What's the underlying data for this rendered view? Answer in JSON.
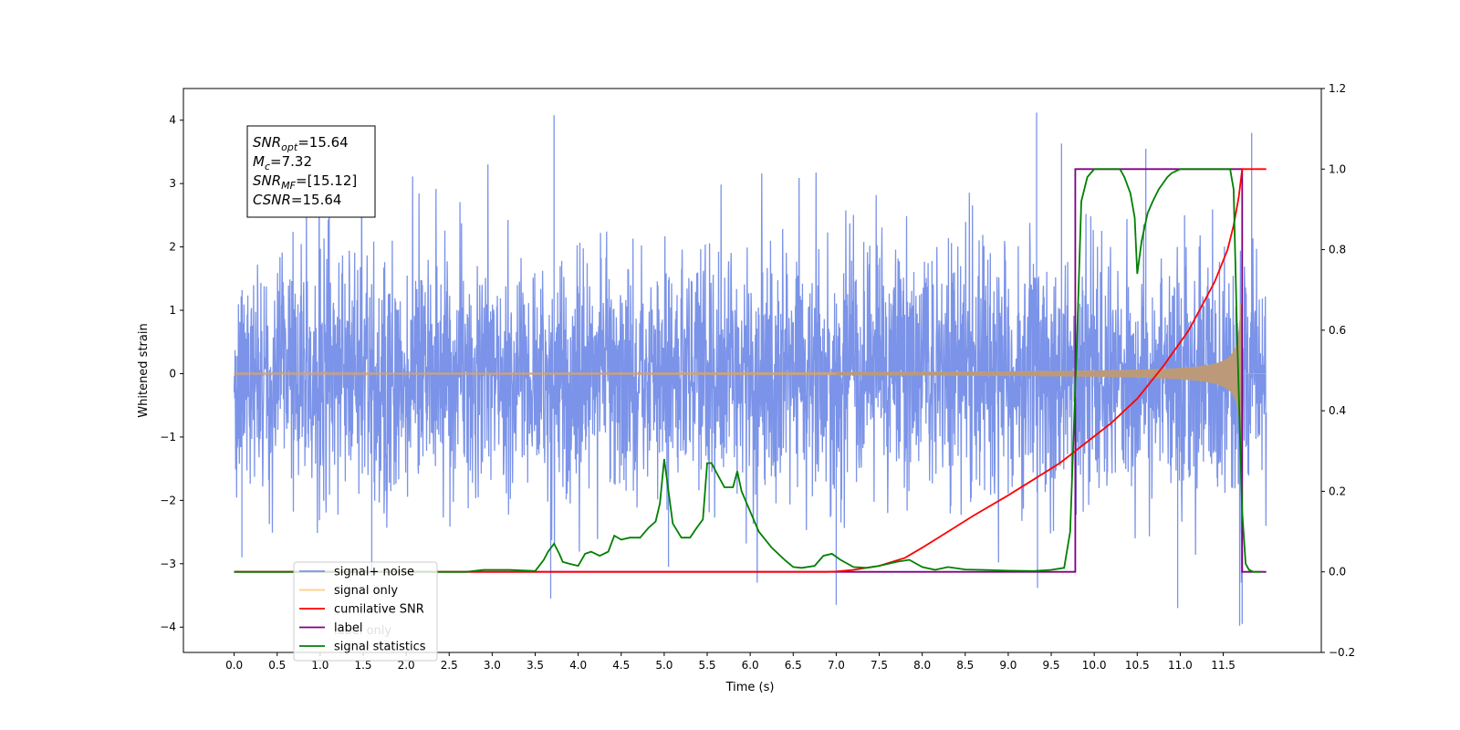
{
  "chart_data": {
    "type": "line",
    "xlabel": "Time (s)",
    "ylabel": "Whitened strain",
    "x_ticks": [
      0.0,
      0.5,
      1.0,
      1.5,
      2.0,
      2.5,
      3.0,
      3.5,
      4.0,
      4.5,
      5.0,
      5.5,
      6.0,
      6.5,
      7.0,
      7.5,
      8.0,
      8.5,
      9.0,
      9.5,
      10.0,
      10.5,
      11.0,
      11.5
    ],
    "x_tick_labels": [
      "0.0",
      "0.5",
      "1.0",
      "1.5",
      "2.0",
      "2.5",
      "3.0",
      "3.5",
      "4.0",
      "4.5",
      "5.0",
      "5.5",
      "6.0",
      "6.5",
      "7.0",
      "7.5",
      "8.0",
      "8.5",
      "9.0",
      "9.5",
      "10.0",
      "10.5",
      "11.0",
      "11.5"
    ],
    "xlim": [
      -0.59,
      12.64
    ],
    "ylim_left": [
      -4.4,
      4.5
    ],
    "y_ticks_left": [
      -4,
      -3,
      -2,
      -1,
      0,
      1,
      2,
      3,
      4
    ],
    "y_tick_labels_left": [
      "−4",
      "−3",
      "−2",
      "−1",
      "0",
      "1",
      "2",
      "3",
      "4"
    ],
    "ylim_right": [
      -0.2,
      1.2
    ],
    "y_ticks_right": [
      -0.2,
      0.0,
      0.2,
      0.4,
      0.6,
      0.8,
      1.0,
      1.2
    ],
    "y_tick_labels_right": [
      "−0.2",
      "0.0",
      "0.2",
      "0.4",
      "0.6",
      "0.8",
      "1.0",
      "1.2"
    ],
    "annotation": {
      "lines": [
        {
          "name": "SNR",
          "sub": "opt",
          "value": "=15.64"
        },
        {
          "name": "M",
          "sub": "c",
          "value": "=7.32"
        },
        {
          "name": "SNR",
          "sub": "MF",
          "value": "=[15.12]"
        },
        {
          "name": "CSNR",
          "sub": "",
          "value": "=15.64"
        }
      ]
    },
    "legend": {
      "placement": "lower-left",
      "entries": [
        {
          "label": "signal+ noise",
          "color": "#7b93e8"
        },
        {
          "label": "signal only",
          "color": "#ffcc80"
        },
        {
          "label": "cumilative SNR",
          "color": "#ff0000"
        },
        {
          "label": "label",
          "color": "#800080"
        },
        {
          "label": "signal statistics",
          "color": "#008000"
        }
      ]
    },
    "ghost_text": "label only",
    "series": [
      {
        "name": "signal+ noise",
        "axis": "left",
        "color": "#7b93e8",
        "kind": "noise",
        "x_start": 0.0,
        "x_end": 12.0,
        "typical_std": 0.95,
        "peaks": [
          [
            3.72,
            4.08
          ],
          [
            9.33,
            4.12
          ],
          [
            11.83,
            3.8
          ],
          [
            9.62,
            3.63
          ],
          [
            10.6,
            3.55
          ],
          [
            3.68,
            -3.55
          ],
          [
            7.0,
            -3.65
          ],
          [
            10.97,
            -3.7
          ],
          [
            9.34,
            -3.38
          ],
          [
            11.69,
            -3.98
          ],
          [
            11.72,
            -3.95
          ],
          [
            0.09,
            -2.9
          ],
          [
            1.6,
            -3.2
          ],
          [
            5.05,
            -3.05
          ]
        ]
      },
      {
        "name": "signal only",
        "axis": "left",
        "color": "#ffcc80",
        "kind": "chirp",
        "x_start": 0.0,
        "x_end": 12.0,
        "merger_time": 11.72,
        "peak_amplitude": 1.1,
        "post_merger_amplitude": 0.0
      },
      {
        "name": "cumilative SNR",
        "axis": "right",
        "color": "#ff0000",
        "x": [
          0.0,
          6.9,
          7.0,
          7.2,
          7.5,
          7.8,
          8.0,
          8.3,
          8.6,
          9.0,
          9.3,
          9.6,
          9.9,
          10.2,
          10.5,
          10.8,
          11.1,
          11.4,
          11.55,
          11.62,
          11.68,
          11.72,
          12.0
        ],
        "y": [
          0.0,
          0.0,
          0.001,
          0.005,
          0.015,
          0.035,
          0.06,
          0.1,
          0.14,
          0.19,
          0.23,
          0.27,
          0.32,
          0.37,
          0.43,
          0.51,
          0.6,
          0.72,
          0.8,
          0.86,
          0.93,
          1.0,
          1.0
        ]
      },
      {
        "name": "label",
        "axis": "right",
        "color": "#800080",
        "x": [
          0.0,
          9.78,
          9.78,
          11.72,
          11.72,
          12.0
        ],
        "y": [
          0.0,
          0.0,
          1.0,
          1.0,
          0.0,
          0.0
        ]
      },
      {
        "name": "signal statistics",
        "axis": "right",
        "color": "#008000",
        "x": [
          0.0,
          2.7,
          2.9,
          3.2,
          3.5,
          3.6,
          3.65,
          3.72,
          3.78,
          3.82,
          3.9,
          4.0,
          4.08,
          4.15,
          4.25,
          4.35,
          4.42,
          4.5,
          4.6,
          4.72,
          4.82,
          4.9,
          4.95,
          5.0,
          5.05,
          5.1,
          5.2,
          5.3,
          5.38,
          5.45,
          5.5,
          5.55,
          5.6,
          5.7,
          5.8,
          5.85,
          5.9,
          6.0,
          6.1,
          6.25,
          6.4,
          6.5,
          6.6,
          6.75,
          6.85,
          6.95,
          7.05,
          7.2,
          7.35,
          7.5,
          7.7,
          7.85,
          8.0,
          8.15,
          8.3,
          8.5,
          8.7,
          9.0,
          9.3,
          9.5,
          9.65,
          9.72,
          9.8,
          9.85,
          9.92,
          10.0,
          10.1,
          10.3,
          10.35,
          10.42,
          10.47,
          10.5,
          10.55,
          10.62,
          10.68,
          10.75,
          10.85,
          10.9,
          11.0,
          11.2,
          11.4,
          11.58,
          11.62,
          11.66,
          11.72,
          11.76,
          11.8,
          11.85,
          11.92,
          11.95
        ],
        "y": [
          0.0,
          0.0,
          0.005,
          0.005,
          0.002,
          0.03,
          0.05,
          0.07,
          0.045,
          0.025,
          0.02,
          0.015,
          0.045,
          0.05,
          0.04,
          0.05,
          0.09,
          0.08,
          0.085,
          0.085,
          0.11,
          0.125,
          0.17,
          0.28,
          0.2,
          0.12,
          0.085,
          0.085,
          0.11,
          0.13,
          0.27,
          0.27,
          0.25,
          0.21,
          0.21,
          0.25,
          0.2,
          0.15,
          0.1,
          0.06,
          0.03,
          0.012,
          0.01,
          0.015,
          0.04,
          0.045,
          0.03,
          0.012,
          0.01,
          0.015,
          0.025,
          0.03,
          0.012,
          0.005,
          0.012,
          0.006,
          0.005,
          0.003,
          0.002,
          0.005,
          0.01,
          0.1,
          0.58,
          0.92,
          0.98,
          1.0,
          1.0,
          1.0,
          0.98,
          0.94,
          0.88,
          0.74,
          0.82,
          0.89,
          0.92,
          0.95,
          0.98,
          0.99,
          1.0,
          1.0,
          1.0,
          1.0,
          0.95,
          0.6,
          0.15,
          0.02,
          0.005,
          0.0,
          0.0,
          0.0
        ]
      }
    ]
  }
}
